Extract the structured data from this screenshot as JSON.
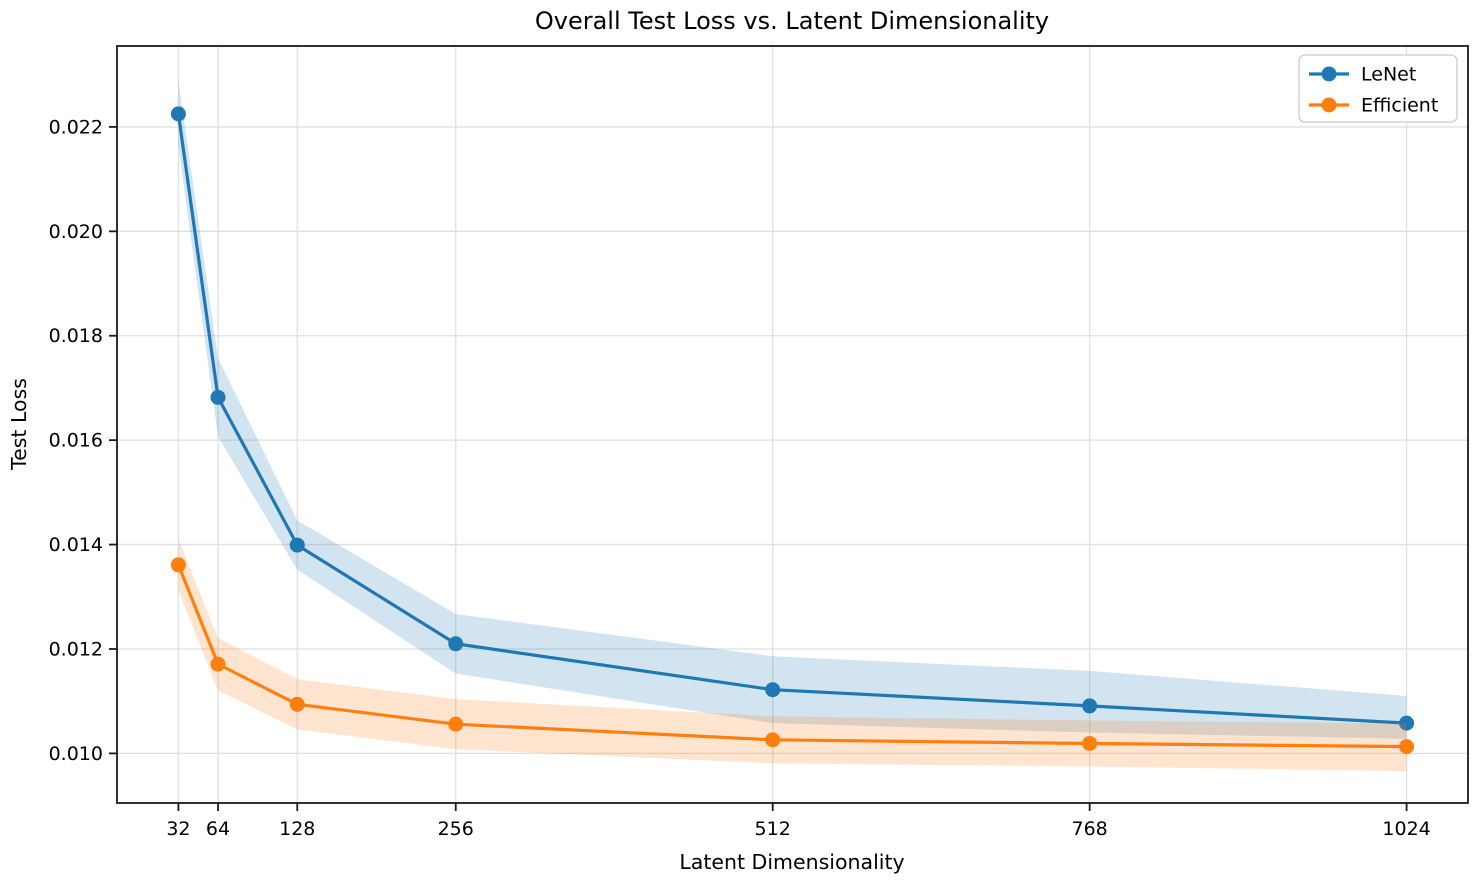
{
  "chart_data": {
    "type": "line",
    "title": "Overall Test Loss vs. Latent Dimensionality",
    "xlabel": "Latent Dimensionality",
    "ylabel": "Test Loss",
    "grid": true,
    "legend_position": "upper right",
    "xlim": [
      -17.6,
      1073.6
    ],
    "ylim": [
      0.00905,
      0.02355
    ],
    "x": [
      32,
      64,
      128,
      256,
      512,
      768,
      1024
    ],
    "x_ticks": [
      32,
      64,
      128,
      256,
      512,
      768,
      1024
    ],
    "x_tick_labels": [
      "32",
      "64",
      "128",
      "256",
      "512",
      "768",
      "1024"
    ],
    "y_ticks": [
      0.01,
      0.012,
      0.014,
      0.016,
      0.018,
      0.02,
      0.022
    ],
    "y_tick_labels": [
      "0.010",
      "0.012",
      "0.014",
      "0.016",
      "0.018",
      "0.020",
      "0.022"
    ],
    "grid_color": "#e0e0e0",
    "spine_color": "#1a1a1a",
    "band_opacity": 0.2,
    "series": [
      {
        "name": "LeNet",
        "color": "#1f77b4",
        "values": [
          0.02225,
          0.01682,
          0.01399,
          0.0121,
          0.01122,
          0.01091,
          0.01058
        ],
        "band_upper": [
          0.02288,
          0.01757,
          0.01446,
          0.01267,
          0.01186,
          0.01158,
          0.0111
        ],
        "band_lower": [
          0.02162,
          0.01607,
          0.01352,
          0.01153,
          0.01058,
          0.0104,
          0.01028
        ]
      },
      {
        "name": "Efficient",
        "color": "#ff7f0e",
        "values": [
          0.01361,
          0.01171,
          0.01094,
          0.01056,
          0.01026,
          0.01019,
          0.01013
        ],
        "band_upper": [
          0.0141,
          0.01221,
          0.01142,
          0.01104,
          0.01071,
          0.01063,
          0.01057
        ],
        "band_lower": [
          0.01312,
          0.01121,
          0.01046,
          0.01008,
          0.00981,
          0.00975,
          0.00966
        ]
      }
    ]
  }
}
